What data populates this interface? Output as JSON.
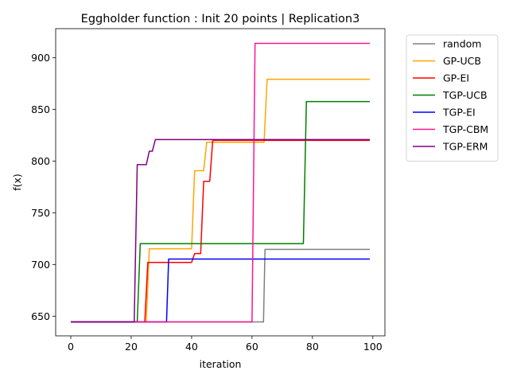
{
  "chart_data": {
    "type": "line",
    "title": "Eggholder function : Init 20 points | Replication3",
    "xlabel": "iteration",
    "ylabel": "f(x)",
    "xlim": [
      -5,
      104
    ],
    "ylim": [
      631,
      928
    ],
    "xticks": [
      0,
      20,
      40,
      60,
      80,
      100
    ],
    "yticks": [
      650,
      700,
      750,
      800,
      850,
      900
    ],
    "legend_position": "upper-right-outside",
    "series": [
      {
        "name": "random",
        "color": "#808080",
        "points": [
          [
            0,
            644.5
          ],
          [
            63.8,
            644.5
          ],
          [
            64.3,
            714.6
          ],
          [
            99,
            714.6
          ]
        ]
      },
      {
        "name": "GP-UCB",
        "color": "#ffa500",
        "points": [
          [
            0,
            644.5
          ],
          [
            25,
            644.5
          ],
          [
            26,
            715.2
          ],
          [
            40,
            715.2
          ],
          [
            41,
            790.7
          ],
          [
            44,
            790.7
          ],
          [
            45,
            818.2
          ],
          [
            64,
            818.2
          ],
          [
            65,
            879.0
          ],
          [
            99,
            879.0
          ]
        ]
      },
      {
        "name": "GP-EI",
        "color": "#ff0000",
        "points": [
          [
            0,
            644.5
          ],
          [
            24.5,
            644.5
          ],
          [
            25.5,
            702.0
          ],
          [
            40,
            702.0
          ],
          [
            41,
            710.5
          ],
          [
            43,
            710.5
          ],
          [
            44,
            780.4
          ],
          [
            46,
            780.4
          ],
          [
            47,
            820.0
          ],
          [
            99,
            820.0
          ]
        ]
      },
      {
        "name": "TGP-UCB",
        "color": "#008000",
        "points": [
          [
            0,
            644.5
          ],
          [
            22,
            644.5
          ],
          [
            23,
            720.2
          ],
          [
            77,
            720.2
          ],
          [
            78,
            857.5
          ],
          [
            99,
            857.5
          ]
        ]
      },
      {
        "name": "TGP-EI",
        "color": "#0000ff",
        "points": [
          [
            0,
            644.5
          ],
          [
            31.7,
            644.5
          ],
          [
            32.4,
            705.2
          ],
          [
            99,
            705.2
          ]
        ]
      },
      {
        "name": "TGP-CBM",
        "color": "#ff1493",
        "points": [
          [
            0,
            644.5
          ],
          [
            60,
            644.5
          ],
          [
            61,
            913.8
          ],
          [
            99,
            913.8
          ]
        ]
      },
      {
        "name": "TGP-ERM",
        "color": "#800080",
        "points": [
          [
            0,
            644.5
          ],
          [
            21,
            644.5
          ],
          [
            22,
            796.5
          ],
          [
            25,
            796.5
          ],
          [
            26,
            809.5
          ],
          [
            27,
            809.5
          ],
          [
            28,
            820.8
          ],
          [
            99,
            820.8
          ]
        ]
      }
    ]
  }
}
